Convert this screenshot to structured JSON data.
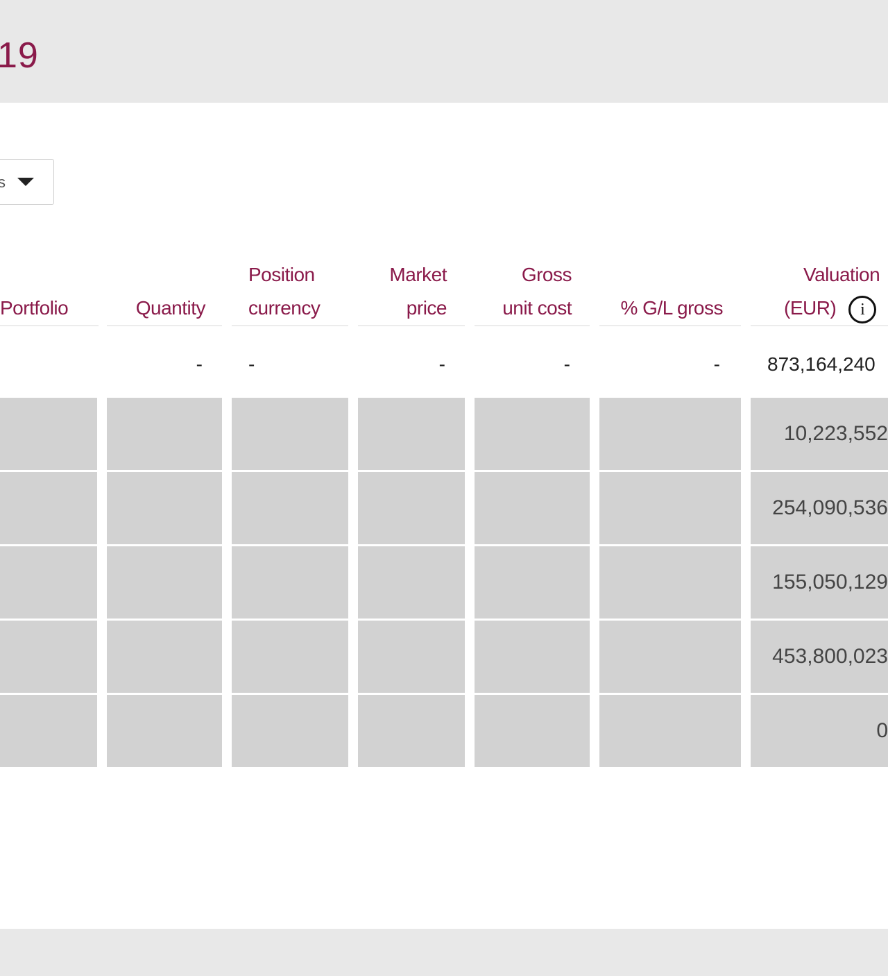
{
  "page": {
    "title": "19"
  },
  "filter": {
    "dropdown_value": "s"
  },
  "table": {
    "columns": [
      {
        "key": "portfolio",
        "label_lines": [
          "",
          "Portfolio"
        ]
      },
      {
        "key": "quantity",
        "label_lines": [
          "",
          "Quantity"
        ]
      },
      {
        "key": "position_currency",
        "label_lines": [
          "Position",
          "currency"
        ]
      },
      {
        "key": "market_price",
        "label_lines": [
          "Market",
          "price"
        ]
      },
      {
        "key": "gross_unit_cost",
        "label_lines": [
          "Gross",
          "unit cost"
        ]
      },
      {
        "key": "gl_gross",
        "label_lines": [
          "",
          "% G/L gross"
        ]
      },
      {
        "key": "valuation",
        "label_lines": [
          "Valuation",
          "(EUR)"
        ]
      }
    ],
    "total_row": {
      "portfolio": "",
      "quantity": "-",
      "position_currency": "-",
      "market_price": "-",
      "gross_unit_cost": "-",
      "gl_gross": "-",
      "valuation": "873,164,240"
    },
    "rows": [
      {
        "valuation": "10,223,552"
      },
      {
        "valuation": "254,090,536"
      },
      {
        "valuation": "155,050,129"
      },
      {
        "valuation": "453,800,023"
      },
      {
        "valuation": "0"
      }
    ]
  },
  "icons": {
    "info": "info-icon",
    "caret": "chevron-down-icon"
  },
  "colors": {
    "accent": "#8a1a4a",
    "row_fill": "#d2d2d2",
    "band": "#e8e8e8"
  }
}
